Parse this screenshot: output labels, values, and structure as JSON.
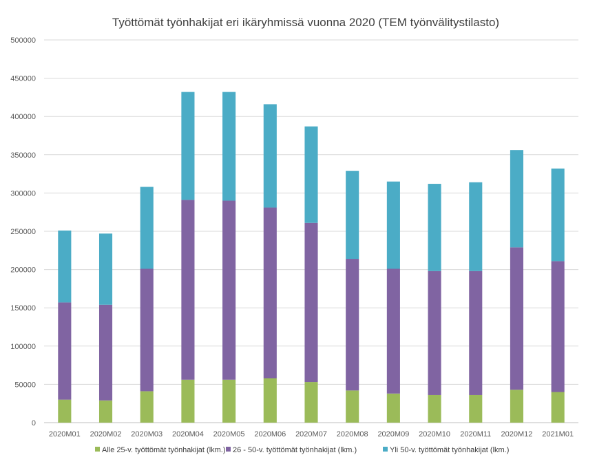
{
  "chart_data": {
    "type": "bar",
    "stacked": true,
    "title": "Työttömät työnhakijat eri ikäryhmissä vuonna 2020 (TEM työnvälitystilasto)",
    "xlabel": "",
    "ylabel": "",
    "ylim": [
      0,
      500000
    ],
    "yticks": [
      0,
      50000,
      100000,
      150000,
      200000,
      250000,
      300000,
      350000,
      400000,
      450000,
      500000
    ],
    "grid": true,
    "legend_position": "bottom",
    "categories": [
      "2020M01",
      "2020M02",
      "2020M03",
      "2020M04",
      "2020M05",
      "2020M06",
      "2020M07",
      "2020M08",
      "2020M09",
      "2020M10",
      "2020M11",
      "2020M12",
      "2021M01"
    ],
    "series": [
      {
        "name": "Alle 25-v. työttömät työnhakijat (lkm.)",
        "color": "#9bbb59",
        "values": [
          30000,
          29000,
          41000,
          56000,
          56000,
          58000,
          53000,
          42000,
          38000,
          36000,
          36000,
          43000,
          40000
        ]
      },
      {
        "name": "26 - 50-v. työttömät työnhakijat (lkm.)",
        "color": "#8064a2",
        "values": [
          127000,
          125000,
          160000,
          235000,
          234000,
          223000,
          208000,
          172000,
          163000,
          162000,
          162000,
          186000,
          171000
        ]
      },
      {
        "name": "Yli 50-v. työttömät työnhakijat (lkm.)",
        "color": "#4bacc6",
        "values": [
          94000,
          93000,
          107000,
          141000,
          142000,
          135000,
          126000,
          115000,
          114000,
          114000,
          116000,
          127000,
          121000
        ]
      }
    ]
  }
}
